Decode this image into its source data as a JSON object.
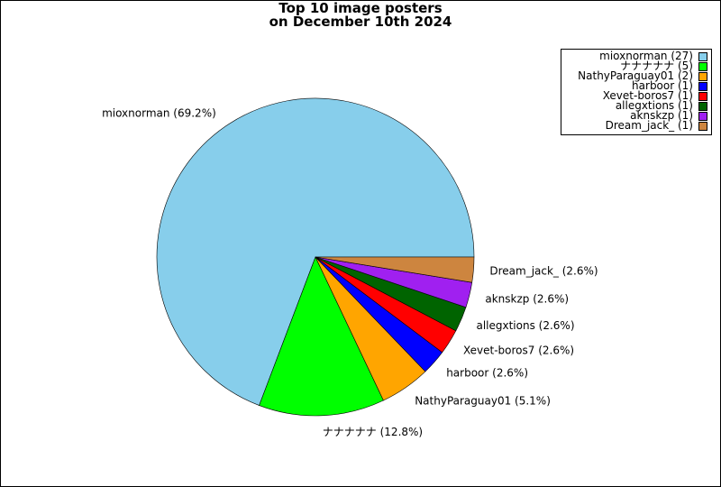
{
  "chart_data": {
    "type": "pie",
    "title_lines": [
      "Top 10 image posters",
      "on December 10th 2024"
    ],
    "slices": [
      {
        "name": "mioxnorman",
        "value": 27,
        "percent_label": "mioxnorman (69.2%)",
        "legend_label": "mioxnorman (27)",
        "color": "#87CEEB"
      },
      {
        "name": "ナナナナナ",
        "value": 5,
        "percent_label": "ナナナナナ (12.8%)",
        "legend_label": "ナナナナナ (5)",
        "color": "#00FF00"
      },
      {
        "name": "NathyParaguay01",
        "value": 2,
        "percent_label": "NathyParaguay01 (5.1%)",
        "legend_label": "NathyParaguay01 (2)",
        "color": "#FFA500"
      },
      {
        "name": "harboor",
        "value": 1,
        "percent_label": "harboor (2.6%)",
        "legend_label": "harboor (1)",
        "color": "#0000FF"
      },
      {
        "name": "Xevet-boros7",
        "value": 1,
        "percent_label": "Xevet-boros7 (2.6%)",
        "legend_label": "Xevet-boros7 (1)",
        "color": "#FF0000"
      },
      {
        "name": "allegxtions",
        "value": 1,
        "percent_label": "allegxtions (2.6%)",
        "legend_label": "allegxtions (1)",
        "color": "#006400"
      },
      {
        "name": "aknskzp",
        "value": 1,
        "percent_label": "aknskzp (2.6%)",
        "legend_label": "aknskzp (1)",
        "color": "#A020F0"
      },
      {
        "name": "Dream_jack_",
        "value": 1,
        "percent_label": "Dream_jack_ (2.6%)",
        "legend_label": "Dream_jack_ (1)",
        "color": "#CD853F"
      }
    ],
    "legend_position": "top-right"
  }
}
